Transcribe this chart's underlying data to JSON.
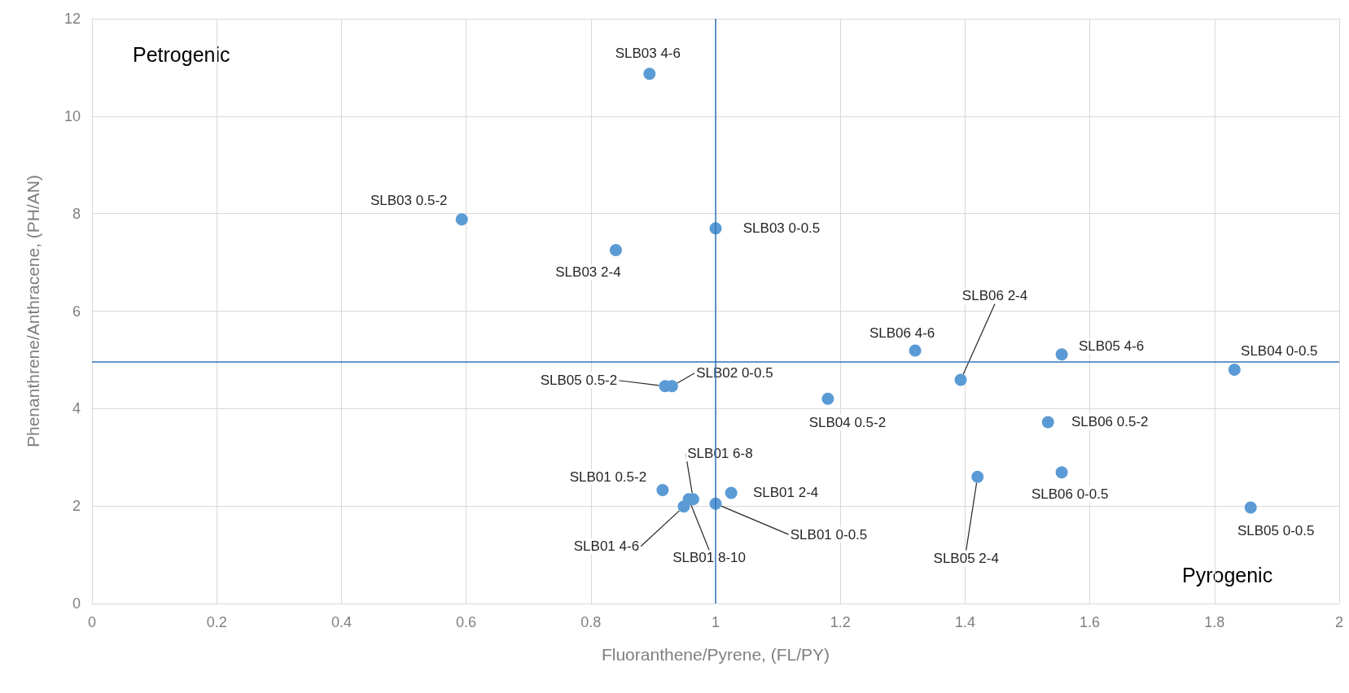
{
  "chart_data": {
    "type": "scatter",
    "xlabel": "Fluoranthene/Pyrene, (FL/PY)",
    "ylabel": "Phenanthrene/Anthracene, (PH/AN)",
    "annotations": [
      "Petrogenic",
      "Pyrogenic"
    ],
    "xlim": [
      0,
      2
    ],
    "xticks": [
      0,
      0.2,
      0.4,
      0.6,
      0.8,
      1,
      1.2,
      1.4,
      1.6,
      1.8,
      2
    ],
    "ylim": [
      0,
      12
    ],
    "yticks": [
      0,
      2,
      4,
      6,
      8,
      10,
      12
    ],
    "grid": true,
    "marker": "circle",
    "ref_lines": [
      {
        "axis": "x",
        "value": 1,
        "color": "#2e75b6"
      },
      {
        "axis": "y",
        "value": 4.96,
        "color": "#2e75b6"
      }
    ],
    "series": [
      {
        "color": "#5b9bd5",
        "x": [
          0.894,
          0.593,
          0.84,
          1.0,
          1.32,
          1.393,
          1.555,
          1.832,
          0.93,
          0.919,
          1.18,
          1.533,
          1.555,
          1.42,
          1.858,
          1.025,
          1.0,
          0.915,
          0.949,
          0.957,
          0.964
        ],
        "values": [
          10.87,
          7.88,
          7.25,
          7.7,
          5.19,
          4.59,
          5.11,
          4.8,
          4.46,
          4.46,
          4.2,
          3.72,
          2.69,
          2.6,
          1.97,
          2.27,
          2.05,
          2.33,
          1.99,
          2.14,
          2.14
        ],
        "value_labels": [
          "SLB03 4-6",
          "SLB03 0.5-2",
          "SLB03 2-4",
          "SLB03 0-0.5",
          "SLB06 4-6",
          "SLB06 2-4",
          "SLB05 4-6",
          "SLB04 0-0.5",
          "SLB02 0-0.5",
          "SLB05 0.5-2",
          "SLB04 0.5-2",
          "SLB06 0.5-2",
          "SLB06 0-0.5",
          "SLB05 2-4",
          "SLB05 0-0.5",
          "SLB01 2-4",
          "SLB01 0-0.5",
          "SLB01 0.5-2",
          "SLB01 4-6",
          "SLB01 8-10",
          "SLB01 6-8"
        ]
      }
    ]
  }
}
